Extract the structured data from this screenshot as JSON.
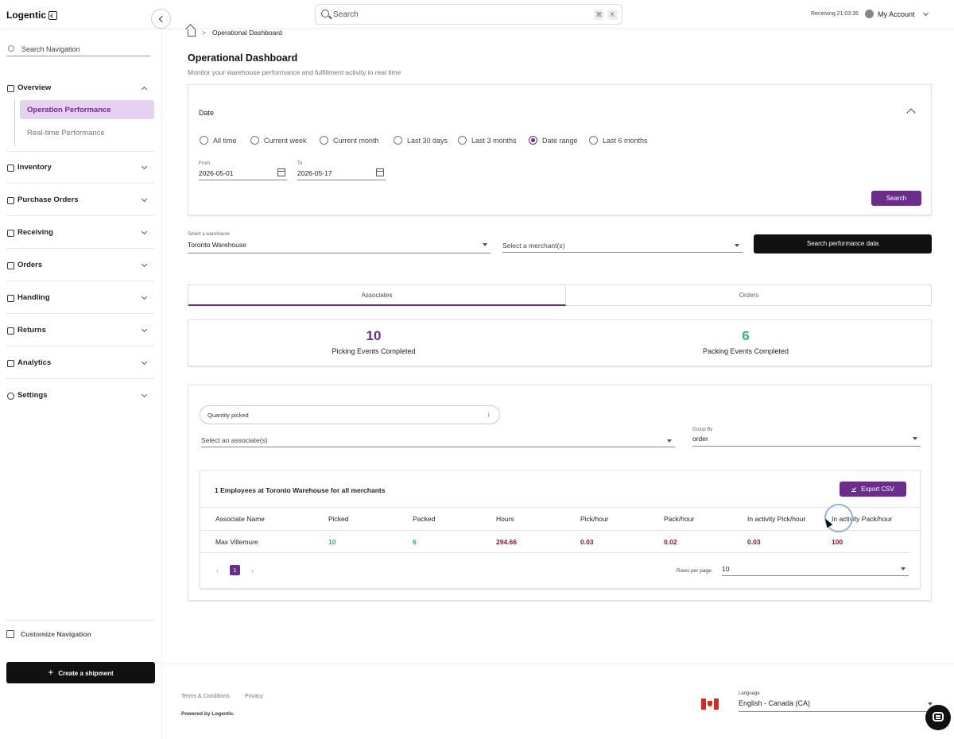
{
  "header": {
    "logo": "Logentic",
    "search_placeholder": "Search",
    "shortcut_key1": "⌘",
    "shortcut_key2": "K",
    "receiving_status": "Receiving 21:03:35",
    "account_label": "My Account"
  },
  "sidebar": {
    "search_placeholder": "Search Navigation",
    "sections": [
      {
        "label": "Overview",
        "icon": "home-icon",
        "expanded": true
      },
      {
        "label": "Inventory",
        "icon": "box-icon"
      },
      {
        "label": "Purchase Orders",
        "icon": "cart-icon"
      },
      {
        "label": "Receiving",
        "icon": "inbox-icon"
      },
      {
        "label": "Orders",
        "icon": "document-icon"
      },
      {
        "label": "Handling",
        "icon": "hand-icon"
      },
      {
        "label": "Returns",
        "icon": "return-icon"
      },
      {
        "label": "Analytics",
        "icon": "bar-chart-icon"
      },
      {
        "label": "Settings",
        "icon": "gear-icon"
      }
    ],
    "overview_items": [
      {
        "label": "Operation Performance",
        "active": true
      },
      {
        "label": "Real-time Performance",
        "active": false
      }
    ],
    "customize_label": "Customize Navigation",
    "create_shipment_label": "Create a shipment"
  },
  "breadcrumb": {
    "current": "Operational Dashboard"
  },
  "page": {
    "title": "Operational Dashboard",
    "subtitle": "Monitor your warehouse performance and fulfillment activity in real time"
  },
  "date_filter": {
    "label": "Date",
    "options": [
      "All time",
      "Current week",
      "Current month",
      "Last 30 days",
      "Last 3 months",
      "Date range",
      "Last 6 months"
    ],
    "selected": "Date range",
    "from_label": "From",
    "from_value": "2026-05-01",
    "to_label": "To",
    "to_value": "2026-05-17",
    "search_label": "Search"
  },
  "filters": {
    "warehouse_label": "Select a warehouse",
    "warehouse_value": "Toronto Warehouse",
    "merchant_placeholder": "Select a merchant(s)",
    "search_performance_label": "Search performance data"
  },
  "tabs": [
    "Associates",
    "Orders"
  ],
  "stats": [
    {
      "value": "10",
      "label": "Picking Events Completed",
      "color": "#6b2d8b"
    },
    {
      "value": "6",
      "label": "Packing Events Completed",
      "color": "#2fb56a"
    }
  ],
  "table_controls": {
    "metric_value": "Quantity picked",
    "associate_placeholder": "Select an associate(s)",
    "group_by_label": "Group By",
    "group_by_value": "order"
  },
  "employees_table": {
    "title": "1 Employees at Toronto Warehouse for all merchants",
    "export_label": "Export CSV",
    "columns": [
      "Associate Name",
      "Picked",
      "Packed",
      "Hours",
      "Pick/hour",
      "Pack/hour",
      "In activity Pick/hour",
      "In activity Pack/hour"
    ],
    "rows": [
      [
        "Max Villemure",
        "10",
        "6",
        "294.66",
        "0.03",
        "0.02",
        "0.03",
        "100"
      ]
    ],
    "page_number": "1",
    "rows_per_page_label": "Rows per page:",
    "rows_per_page_value": "10"
  },
  "footer": {
    "terms": "Terms & Conditions",
    "privacy": "Privacy",
    "powered_by": "Powered by Logentic.",
    "language_label": "Language",
    "language_value": "English - Canada (CA)"
  }
}
